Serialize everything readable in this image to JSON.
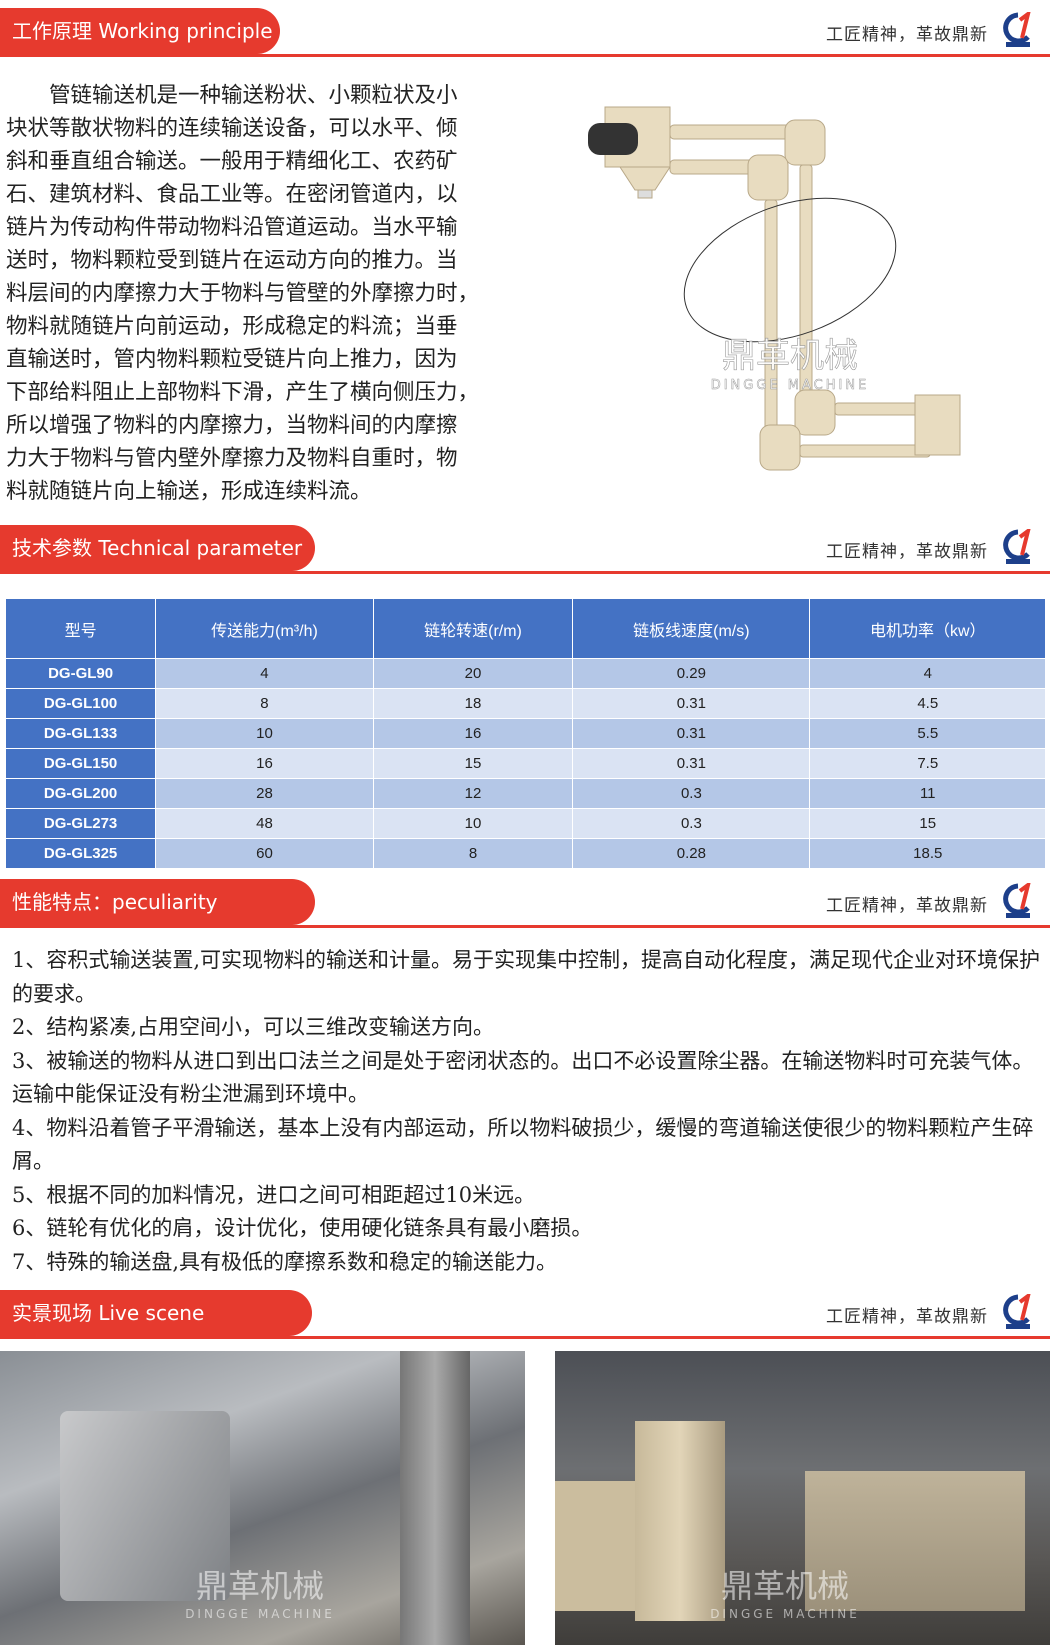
{
  "slogan": "工匠精神，革故鼎新",
  "brand": {
    "logo_text": "鼎革机械",
    "watermark_cn": "鼎革机械",
    "watermark_en": "DINGGE MACHINE",
    "accent": "#e63a2e"
  },
  "sections": {
    "working": {
      "title": "工作原理  Working principle"
    },
    "technical": {
      "title": "技术参数 Technical parameter"
    },
    "peculiarity": {
      "title": "性能特点：peculiarity"
    },
    "live": {
      "title": "实景现场    Live scene"
    }
  },
  "working_lines": [
    "　　管链输送机是一种输送粉状、小颗粒状及小",
    "块状等散状物料的连续输送设备，可以水平、倾",
    "斜和垂直组合输送。一般用于精细化工、农药矿",
    "石、建筑材料、食品工业等。在密闭管道内，以",
    "链片为传动构件带动物料沿管道运动。当水平输",
    "送时，物料颗粒受到链片在运动方向的推力。当",
    "料层间的内摩擦力大于物料与管壁的外摩擦力时，",
    "物料就随链片向前运动，形成稳定的料流；当垂",
    "直输送时，管内物料颗粒受链片向上推力，因为",
    "下部给料阻止上部物料下滑，产生了横向侧压力，",
    "所以增强了物料的内摩擦力，当物料间的内摩擦",
    "力大于物料与管内壁外摩擦力及物料自重时，物",
    "料就随链片向上输送，形成连续料流。"
  ],
  "table": {
    "headers": [
      "型号",
      "传送能力(m³/h)",
      "链轮转速(r/m)",
      "链板线速度(m/s)",
      "电机功率（kw）"
    ],
    "rows": [
      [
        "DG-GL90",
        "4",
        "20",
        "0.29",
        "4"
      ],
      [
        "DG-GL100",
        "8",
        "18",
        "0.31",
        "4.5"
      ],
      [
        "DG-GL133",
        "10",
        "16",
        "0.31",
        "5.5"
      ],
      [
        "DG-GL150",
        "16",
        "15",
        "0.31",
        "7.5"
      ],
      [
        "DG-GL200",
        "28",
        "12",
        "0.3",
        "11"
      ],
      [
        "DG-GL273",
        "48",
        "10",
        "0.3",
        "15"
      ],
      [
        "DG-GL325",
        "60",
        "8",
        "0.28",
        "18.5"
      ]
    ]
  },
  "features": [
    "1、容积式输送装置,可实现物料的输送和计量。易于实现集中控制，提高自动化程度，满足现代企业对环境保护的要求。",
    "2、结构紧凑,占用空间小，可以三维改变输送方向。",
    "3、被输送的物料从进口到出口法兰之间是处于密闭状态的。出口不必设置除尘器。在输送物料时可充装气体。运输中能保证没有粉尘泄漏到环境中。",
    "4、物料沿着管子平滑输送，基本上没有内部运动，所以物料破损少，缓慢的弯道输送使很少的物料颗粒产生碎屑。",
    "5、根据不同的加料情况，进口之间可相距超过10米远。",
    "6、链轮有优化的肩，设计优化，使用硬化链条具有最小磨损。",
    "7、特殊的输送盘,具有极低的摩擦系数和稳定的输送能力。"
  ]
}
